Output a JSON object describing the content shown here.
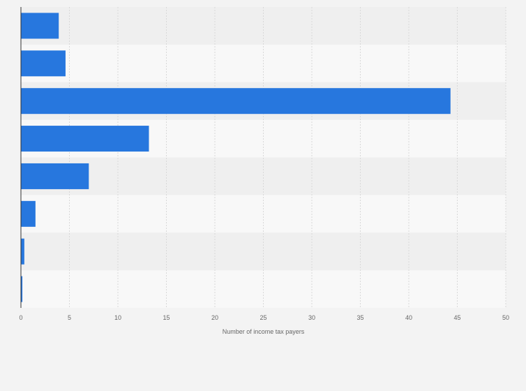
{
  "chart_data": {
    "type": "bar",
    "orientation": "horizontal",
    "categories": [
      "",
      "",
      "",
      "",
      "",
      "",
      "",
      ""
    ],
    "values": [
      3.9,
      4.6,
      44.3,
      13.2,
      7.0,
      1.5,
      0.35,
      0.15
    ],
    "xlabel": "Number of income tax payers",
    "ylabel": "",
    "xlim": [
      0,
      50
    ],
    "xticks": [
      0,
      5,
      10,
      15,
      20,
      25,
      30,
      35,
      40,
      45,
      50
    ],
    "grid": true,
    "legend": "none",
    "colors": {
      "bar": "#2777de",
      "band_dark": "#efefef",
      "band_light": "#f8f8f8",
      "grid": "#d8d8d8",
      "axis": "#333333",
      "text": "#666666"
    }
  }
}
